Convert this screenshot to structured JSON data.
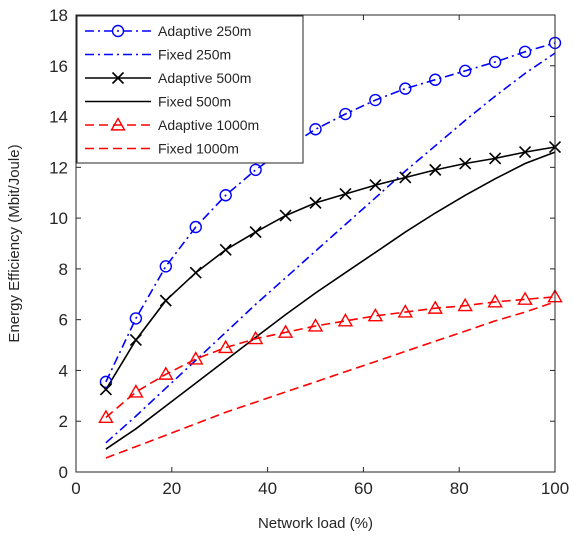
{
  "chart_data": {
    "type": "line",
    "xlabel": "Network load  (%)",
    "ylabel": "Energy Efficiency (Mbit/Joule)",
    "xlim": [
      0,
      100
    ],
    "ylim": [
      0,
      18
    ],
    "xticks": [
      0,
      20,
      40,
      60,
      80,
      100
    ],
    "yticks": [
      0,
      2,
      4,
      6,
      8,
      10,
      12,
      14,
      16,
      18
    ],
    "grid": false,
    "legend_position": "top-left",
    "series": [
      {
        "name": "Adaptive 250m",
        "color": "#0000ff",
        "dash": "dashdot",
        "marker": "circle",
        "x": [
          6.25,
          12.5,
          18.75,
          25,
          31.25,
          37.5,
          43.75,
          50,
          56.25,
          62.5,
          68.75,
          75,
          81.25,
          87.5,
          93.75,
          100
        ],
        "y": [
          3.55,
          6.05,
          8.1,
          9.65,
          10.9,
          11.9,
          12.75,
          13.5,
          14.1,
          14.65,
          15.1,
          15.45,
          15.8,
          16.15,
          16.55,
          16.9
        ]
      },
      {
        "name": "Fixed 250m",
        "color": "#0000ff",
        "dash": "dashdot",
        "marker": "none",
        "x": [
          6.25,
          12.5,
          18.75,
          25,
          31.25,
          37.5,
          43.75,
          50,
          56.25,
          62.5,
          68.75,
          75,
          81.25,
          87.5,
          93.75,
          100
        ],
        "y": [
          1.15,
          2.2,
          3.3,
          4.4,
          5.5,
          6.6,
          7.65,
          8.7,
          9.75,
          10.8,
          11.85,
          12.85,
          13.85,
          14.8,
          15.7,
          16.5
        ]
      },
      {
        "name": "Adaptive 500m",
        "color": "#000000",
        "dash": "solid",
        "marker": "x",
        "x": [
          6.25,
          12.5,
          18.75,
          25,
          31.25,
          37.5,
          43.75,
          50,
          56.25,
          62.5,
          68.75,
          75,
          81.25,
          87.5,
          93.75,
          100
        ],
        "y": [
          3.25,
          5.2,
          6.75,
          7.85,
          8.75,
          9.45,
          10.1,
          10.6,
          10.95,
          11.3,
          11.6,
          11.9,
          12.15,
          12.35,
          12.6,
          12.8
        ]
      },
      {
        "name": "Fixed 500m",
        "color": "#000000",
        "dash": "solid",
        "marker": "none",
        "x": [
          6.25,
          12.5,
          18.75,
          25,
          31.25,
          37.5,
          43.75,
          50,
          56.25,
          62.5,
          68.75,
          75,
          81.25,
          87.5,
          93.75,
          100
        ],
        "y": [
          0.9,
          1.7,
          2.6,
          3.5,
          4.4,
          5.3,
          6.2,
          7.05,
          7.85,
          8.65,
          9.45,
          10.2,
          10.9,
          11.55,
          12.15,
          12.6
        ]
      },
      {
        "name": "Adaptive 1000m",
        "color": "#ff0000",
        "dash": "dashed",
        "marker": "triangle",
        "x": [
          6.25,
          12.5,
          18.75,
          25,
          31.25,
          37.5,
          43.75,
          50,
          56.25,
          62.5,
          68.75,
          75,
          81.25,
          87.5,
          93.75,
          100
        ],
        "y": [
          2.15,
          3.15,
          3.85,
          4.45,
          4.9,
          5.25,
          5.5,
          5.75,
          5.95,
          6.15,
          6.3,
          6.45,
          6.55,
          6.7,
          6.8,
          6.9
        ]
      },
      {
        "name": "Fixed 1000m",
        "color": "#ff0000",
        "dash": "dashed",
        "marker": "none",
        "x": [
          6.25,
          12.5,
          18.75,
          25,
          31.25,
          37.5,
          43.75,
          50,
          56.25,
          62.5,
          68.75,
          75,
          81.25,
          87.5,
          93.75,
          100
        ],
        "y": [
          0.55,
          1.0,
          1.45,
          1.9,
          2.35,
          2.75,
          3.15,
          3.55,
          3.95,
          4.35,
          4.75,
          5.15,
          5.55,
          5.95,
          6.3,
          6.7
        ]
      }
    ]
  }
}
